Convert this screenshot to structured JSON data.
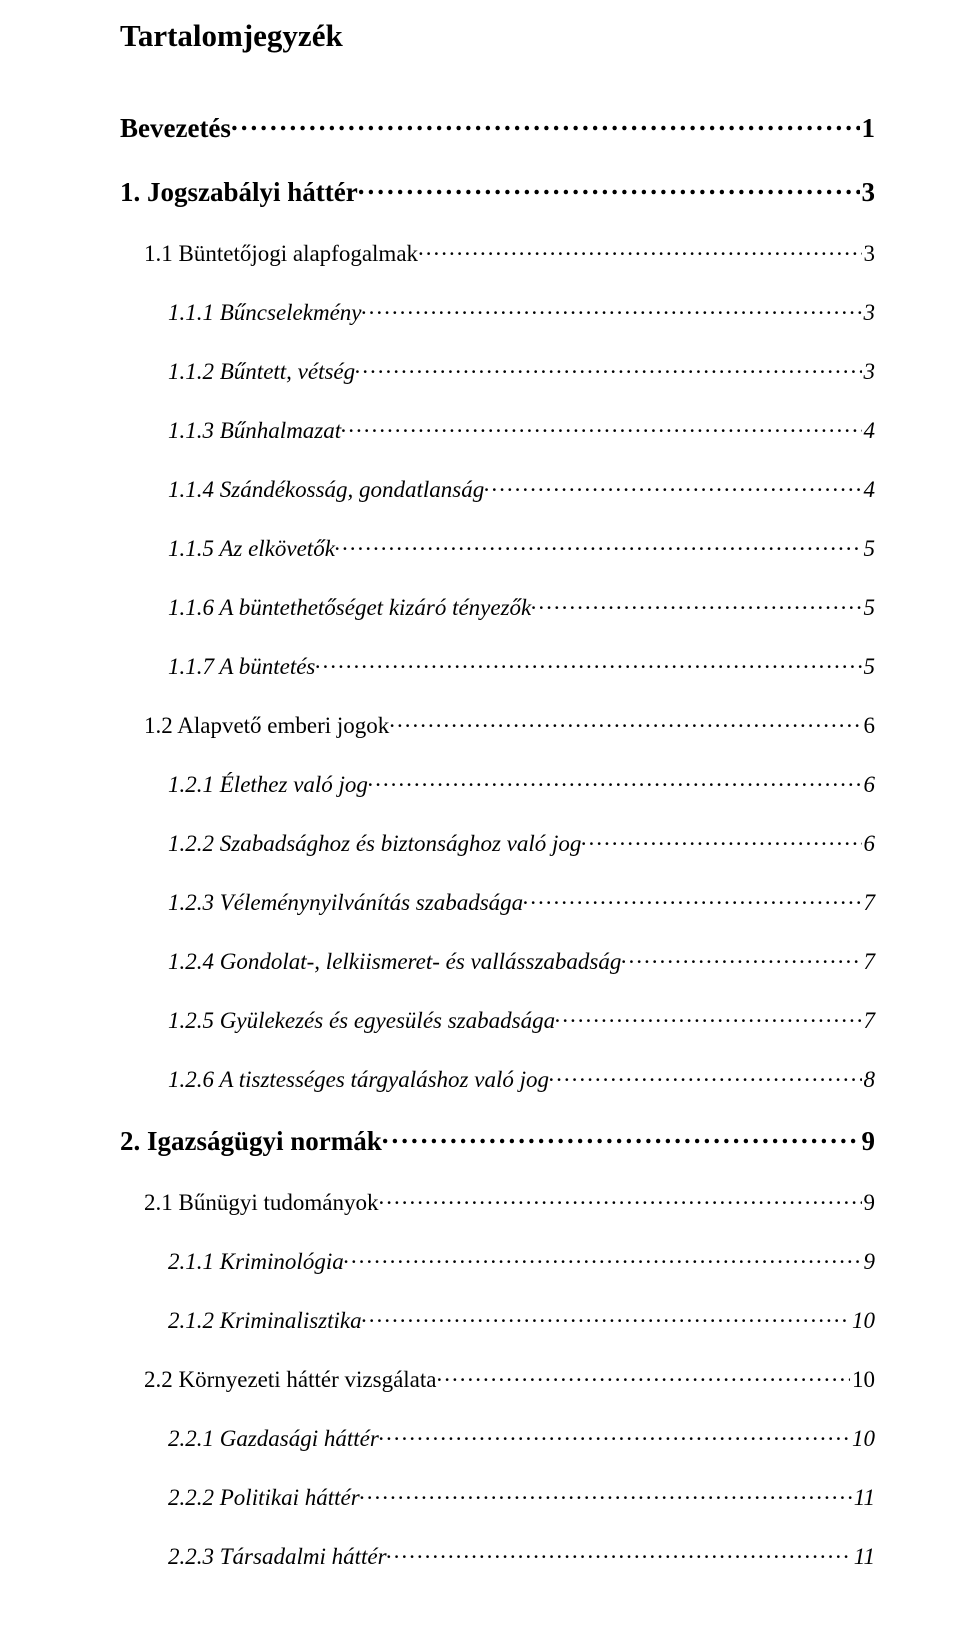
{
  "title": "Tartalomjegyzék",
  "colors": {
    "text": "#000000",
    "background": "#ffffff"
  },
  "typography": {
    "font_family": "Times New Roman",
    "title_fontsize": 31,
    "lvl1_fontsize": 27,
    "lvl2_fontsize": 23,
    "lvl3_fontsize": 23,
    "lvl1_bold": true,
    "lvl3_italic": true
  },
  "entries": [
    {
      "level": 1,
      "label": "Bevezetés",
      "page": "1"
    },
    {
      "level": 1,
      "label": "1. Jogszabályi háttér",
      "page": "3"
    },
    {
      "level": 2,
      "label": "1.1 Büntetőjogi alapfogalmak",
      "page": "3"
    },
    {
      "level": 3,
      "label": "1.1.1 Bűncselekmény",
      "page": "3"
    },
    {
      "level": 3,
      "label": "1.1.2 Bűntett, vétség",
      "page": "3"
    },
    {
      "level": 3,
      "label": "1.1.3 Bűnhalmazat",
      "page": "4"
    },
    {
      "level": 3,
      "label": "1.1.4 Szándékosság, gondatlanság",
      "page": "4"
    },
    {
      "level": 3,
      "label": "1.1.5 Az elkövetők",
      "page": "5"
    },
    {
      "level": 3,
      "label": "1.1.6 A büntethetőséget kizáró tényezők",
      "page": "5"
    },
    {
      "level": 3,
      "label": "1.1.7 A büntetés",
      "page": "5"
    },
    {
      "level": 2,
      "label": "1.2 Alapvető emberi jogok",
      "page": "6"
    },
    {
      "level": 3,
      "label": "1.2.1 Élethez való jog",
      "page": "6"
    },
    {
      "level": 3,
      "label": "1.2.2 Szabadsághoz és biztonsághoz való jog",
      "page": "6"
    },
    {
      "level": 3,
      "label": "1.2.3 Véleménynyilvánítás szabadsága",
      "page": "7"
    },
    {
      "level": 3,
      "label": "1.2.4 Gondolat-, lelkiismeret- és vallásszabadság",
      "page": "7"
    },
    {
      "level": 3,
      "label": "1.2.5 Gyülekezés és egyesülés szabadsága",
      "page": "7"
    },
    {
      "level": 3,
      "label": "1.2.6 A tisztességes tárgyaláshoz való jog",
      "page": "8"
    },
    {
      "level": 1,
      "label": "2. Igazságügyi normák",
      "page": "9"
    },
    {
      "level": 2,
      "label": "2.1 Bűnügyi tudományok",
      "page": "9"
    },
    {
      "level": 3,
      "label": "2.1.1 Kriminológia",
      "page": "9"
    },
    {
      "level": 3,
      "label": "2.1.2 Kriminalisztika",
      "page": "10"
    },
    {
      "level": 2,
      "label": "2.2 Környezeti háttér vizsgálata",
      "page": "10"
    },
    {
      "level": 3,
      "label": "2.2.1 Gazdasági háttér",
      "page": "10"
    },
    {
      "level": 3,
      "label": "2.2.2 Politikai háttér",
      "page": "11"
    },
    {
      "level": 3,
      "label": "2.2.3 Társadalmi háttér",
      "page": "11"
    }
  ]
}
